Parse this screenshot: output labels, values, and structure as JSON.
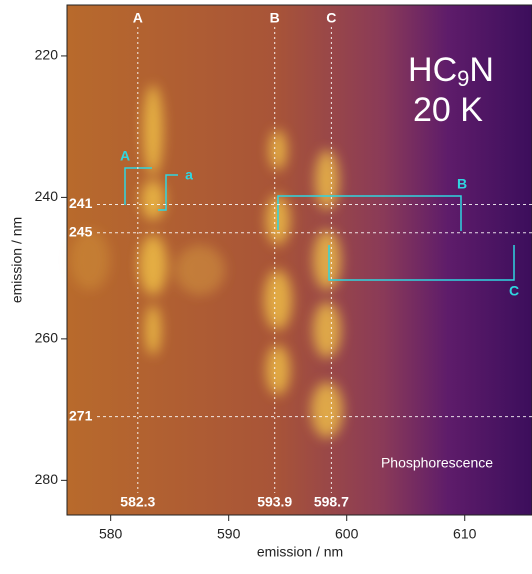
{
  "chart_data": {
    "type": "heatmap",
    "xlabel": "emission / nm",
    "ylabel": "emission / nm",
    "xlim": [
      576.3,
      615.7
    ],
    "ylim": [
      212.8,
      284.9
    ],
    "y_inverted": true,
    "xticks": [
      580,
      590,
      600,
      610
    ],
    "yticks": [
      220,
      240,
      260,
      280
    ],
    "formula": [
      "HC",
      "9",
      "N"
    ],
    "temperature": "20 K",
    "annotation": "Phosphorescence",
    "peaks": [
      {
        "name": "A",
        "x": 582.3
      },
      {
        "name": "B",
        "x": 593.9
      },
      {
        "name": "C",
        "x": 598.7
      }
    ],
    "levels": [
      241,
      245,
      271
    ],
    "brackets": [
      "A",
      "a",
      "B",
      "C"
    ]
  }
}
